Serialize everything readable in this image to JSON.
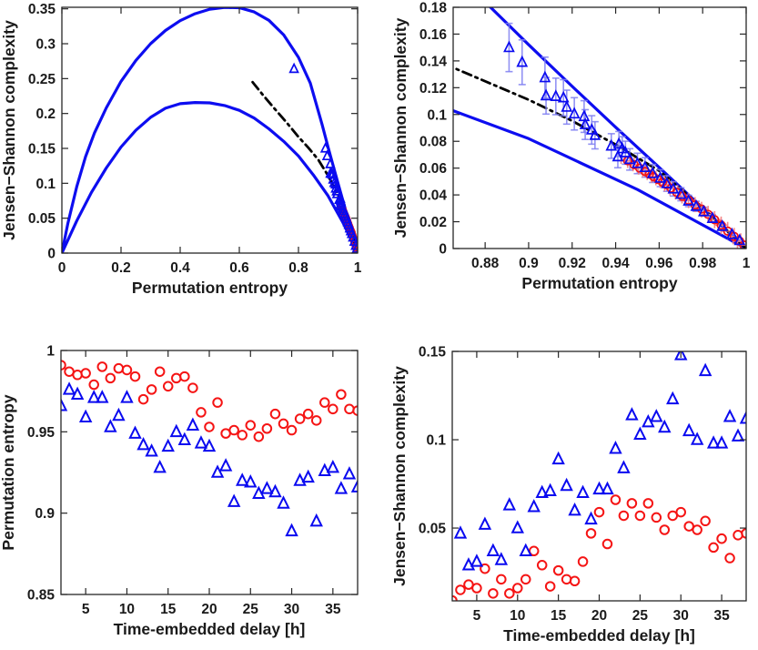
{
  "figure": {
    "background": "#ffffff",
    "axis_color": "#262626",
    "text_color": "#1a1a1a",
    "colors": {
      "blue": "#0a0af0",
      "red": "#f51414",
      "bound_line": "#0d0df0",
      "fit_line": "#000000",
      "blue_errorbar": "#7f7ff2",
      "red_errorbar": "#f47d7d"
    }
  },
  "chart_data": {
    "description": "2x2 subplot figure: complexity-entropy causality plane (full and zoomed) and permutation entropy / Jensen-Shannon complexity versus time-embedded delay",
    "ch_plane": {
      "bounds_upper": [
        [
          0,
          0
        ],
        [
          0.02,
          0.042
        ],
        [
          0.05,
          0.095
        ],
        [
          0.08,
          0.138
        ],
        [
          0.11,
          0.172
        ],
        [
          0.15,
          0.208
        ],
        [
          0.2,
          0.246
        ],
        [
          0.25,
          0.276
        ],
        [
          0.3,
          0.3
        ],
        [
          0.35,
          0.319
        ],
        [
          0.4,
          0.333
        ],
        [
          0.45,
          0.343
        ],
        [
          0.5,
          0.3495
        ],
        [
          0.55,
          0.352
        ],
        [
          0.6,
          0.3515
        ],
        [
          0.65,
          0.3455
        ],
        [
          0.7,
          0.3335
        ],
        [
          0.75,
          0.3125
        ],
        [
          0.8,
          0.2805
        ],
        [
          0.84,
          0.2435
        ],
        [
          0.88,
          0.184
        ],
        [
          0.9,
          0.152
        ],
        [
          0.92,
          0.121
        ],
        [
          0.94,
          0.0905
        ],
        [
          0.96,
          0.0605
        ],
        [
          0.98,
          0.0302
        ],
        [
          1,
          0
        ]
      ],
      "bounds_lower": [
        [
          0,
          0
        ],
        [
          0.05,
          0.046
        ],
        [
          0.1,
          0.087
        ],
        [
          0.15,
          0.122
        ],
        [
          0.2,
          0.152
        ],
        [
          0.25,
          0.176
        ],
        [
          0.3,
          0.1945
        ],
        [
          0.35,
          0.2075
        ],
        [
          0.4,
          0.214
        ],
        [
          0.45,
          0.2158
        ],
        [
          0.5,
          0.2152
        ],
        [
          0.55,
          0.2115
        ],
        [
          0.6,
          0.2045
        ],
        [
          0.65,
          0.1935
        ],
        [
          0.7,
          0.178
        ],
        [
          0.75,
          0.16
        ],
        [
          0.8,
          0.139
        ],
        [
          0.85,
          0.112
        ],
        [
          0.9,
          0.082
        ],
        [
          0.95,
          0.044
        ],
        [
          1,
          0
        ]
      ],
      "fit_dashdot": [
        [
          0.645,
          0.245
        ],
        [
          0.68,
          0.2265
        ],
        [
          0.72,
          0.2065
        ],
        [
          0.76,
          0.187
        ],
        [
          0.8,
          0.1665
        ],
        [
          0.8333,
          0.151
        ],
        [
          0.8667,
          0.134
        ],
        [
          0.9,
          0.111
        ],
        [
          0.92,
          0.0952
        ],
        [
          0.94,
          0.0775
        ],
        [
          0.96,
          0.058
        ],
        [
          0.98,
          0.0305
        ],
        [
          1,
          0
        ]
      ],
      "blue_triangles": {
        "label": "blue triangles with error bars",
        "yerr_factor": 0.12,
        "points": [
          [
            0.785,
            0.264
          ],
          [
            0.891,
            0.15
          ],
          [
            0.897,
            0.139
          ],
          [
            0.9075,
            0.1275
          ],
          [
            0.908,
            0.114
          ],
          [
            0.9125,
            0.1135
          ],
          [
            0.916,
            0.1125
          ],
          [
            0.9175,
            0.1055
          ],
          [
            0.921,
            0.1005
          ],
          [
            0.9255,
            0.0985
          ],
          [
            0.926,
            0.0925
          ],
          [
            0.929,
            0.0885
          ],
          [
            0.9305,
            0.0845
          ],
          [
            0.938,
            0.0765
          ],
          [
            0.9415,
            0.078
          ],
          [
            0.941,
            0.0685
          ],
          [
            0.943,
            0.0745
          ],
          [
            0.9445,
            0.0715
          ],
          [
            0.9465,
            0.0665
          ],
          [
            0.95,
            0.0635
          ],
          [
            0.9535,
            0.0605
          ],
          [
            0.957,
            0.056
          ],
          [
            0.9605,
            0.0525
          ],
          [
            0.9635,
            0.0485
          ],
          [
            0.9665,
            0.0445
          ],
          [
            0.97,
            0.0405
          ],
          [
            0.9735,
            0.0355
          ],
          [
            0.977,
            0.0315
          ],
          [
            0.9805,
            0.0275
          ],
          [
            0.9845,
            0.0225
          ],
          [
            0.989,
            0.0165
          ],
          [
            0.9935,
            0.0105
          ],
          [
            0.997,
            0.006
          ]
        ]
      },
      "red_circles": {
        "label": "red circles with error bars",
        "xerr": 0.003,
        "points": [
          [
            0.9455,
            0.0655
          ],
          [
            0.9485,
            0.0625
          ],
          [
            0.951,
            0.06
          ],
          [
            0.9535,
            0.0575
          ],
          [
            0.9555,
            0.0555
          ],
          [
            0.9575,
            0.0535
          ],
          [
            0.9595,
            0.0515
          ],
          [
            0.9615,
            0.0495
          ],
          [
            0.9635,
            0.0475
          ],
          [
            0.9655,
            0.045
          ],
          [
            0.968,
            0.042
          ],
          [
            0.9705,
            0.039
          ],
          [
            0.9735,
            0.036
          ],
          [
            0.9765,
            0.0325
          ],
          [
            0.9795,
            0.0295
          ],
          [
            0.9825,
            0.0255
          ],
          [
            0.9855,
            0.0215
          ],
          [
            0.9885,
            0.0175
          ],
          [
            0.9915,
            0.013
          ],
          [
            0.9945,
            0.009
          ],
          [
            0.997,
            0.0055
          ],
          [
            0.999,
            0.0025
          ]
        ]
      }
    },
    "panels": [
      {
        "id": "top-left",
        "type": "scatter",
        "xlabel": "Permutation entropy",
        "ylabel": "Jensen−Shannon complexity",
        "xlim": [
          0,
          1
        ],
        "ylim": [
          0,
          0.3522
        ],
        "xticks": [
          0,
          0.2,
          0.4,
          0.6,
          0.8,
          1
        ],
        "yticks": [
          0,
          0.05,
          0.1,
          0.15,
          0.2,
          0.25,
          0.3,
          0.35
        ],
        "content": "ch_plane",
        "errorbars": false,
        "marker_px": 4.4
      },
      {
        "id": "top-right",
        "type": "scatter",
        "xlabel": "Permutation entropy",
        "ylabel": "Jensen−Shannon complexity",
        "xlim": [
          0.8653,
          1
        ],
        "ylim": [
          0,
          0.18
        ],
        "xticks": [
          0.88,
          0.9,
          0.92,
          0.94,
          0.96,
          0.98,
          1
        ],
        "yticks": [
          0,
          0.02,
          0.04,
          0.06,
          0.08,
          0.1,
          0.12,
          0.14,
          0.16,
          0.18
        ],
        "content": "ch_plane",
        "errorbars": true,
        "marker_px": 5
      },
      {
        "id": "bottom-left",
        "type": "scatter",
        "xlabel": "Time-embedded delay [h]",
        "ylabel": "Permutation entropy",
        "xlim": [
          2,
          38
        ],
        "ylim": [
          0.85,
          1
        ],
        "xticks": [
          5,
          10,
          15,
          20,
          25,
          30,
          35
        ],
        "yticks": [
          0.85,
          0.9,
          0.95,
          1
        ],
        "marker_px": 5.6,
        "series": [
          {
            "name": "red-circles",
            "marker": "circle",
            "color": "red",
            "x": [
              2,
              3,
              4,
              5,
              6,
              7,
              8,
              9,
              10,
              11,
              12,
              13,
              14,
              15,
              16,
              17,
              18,
              19,
              20,
              21,
              22,
              23,
              24,
              25,
              26,
              27,
              28,
              29,
              30,
              31,
              32,
              33,
              34,
              35,
              36,
              37,
              38
            ],
            "y": [
              0.991,
              0.987,
              0.985,
              0.986,
              0.979,
              0.99,
              0.983,
              0.989,
              0.988,
              0.984,
              0.97,
              0.976,
              0.987,
              0.978,
              0.983,
              0.984,
              0.977,
              0.962,
              0.953,
              0.968,
              0.949,
              0.951,
              0.948,
              0.954,
              0.947,
              0.952,
              0.961,
              0.955,
              0.951,
              0.958,
              0.961,
              0.957,
              0.968,
              0.964,
              0.973,
              0.964,
              0.963
            ]
          },
          {
            "name": "blue-triangles",
            "marker": "triangle",
            "color": "blue",
            "x": [
              2,
              3,
              4,
              5,
              6,
              7,
              8,
              9,
              10,
              11,
              12,
              13,
              14,
              15,
              16,
              17,
              18,
              19,
              20,
              21,
              22,
              23,
              24,
              25,
              26,
              27,
              28,
              29,
              30,
              31,
              32,
              33,
              34,
              35,
              36,
              37,
              38
            ],
            "y": [
              0.966,
              0.976,
              0.973,
              0.959,
              0.971,
              0.971,
              0.953,
              0.96,
              0.971,
              0.949,
              0.942,
              0.938,
              0.928,
              0.941,
              0.95,
              0.945,
              0.954,
              0.943,
              0.941,
              0.925,
              0.929,
              0.907,
              0.92,
              0.919,
              0.912,
              0.915,
              0.913,
              0.906,
              0.889,
              0.92,
              0.922,
              0.895,
              0.926,
              0.928,
              0.915,
              0.924,
              0.916
            ]
          }
        ]
      },
      {
        "id": "bottom-right",
        "type": "scatter",
        "xlabel": "Time-embedded delay [h]",
        "ylabel": "Jensen−Shannon complexity",
        "xlim": [
          2,
          38
        ],
        "ylim": [
          0.0088,
          0.15
        ],
        "xticks": [
          5,
          10,
          15,
          20,
          25,
          30,
          35
        ],
        "yticks": [
          0.05,
          0.1,
          0.15
        ],
        "marker_px": 5.6,
        "series": [
          {
            "name": "red-circles",
            "marker": "circle",
            "color": "red",
            "x": [
              2,
              3,
              4,
              5,
              6,
              7,
              8,
              9,
              10,
              11,
              12,
              13,
              14,
              15,
              16,
              17,
              18,
              19,
              20,
              21,
              22,
              23,
              24,
              25,
              26,
              27,
              28,
              29,
              30,
              31,
              32,
              33,
              34,
              35,
              36,
              37,
              38
            ],
            "y": [
              0.009,
              0.015,
              0.018,
              0.016,
              0.027,
              0.013,
              0.021,
              0.013,
              0.016,
              0.021,
              0.037,
              0.029,
              0.017,
              0.026,
              0.021,
              0.02,
              0.031,
              0.047,
              0.059,
              0.041,
              0.066,
              0.057,
              0.064,
              0.057,
              0.064,
              0.056,
              0.049,
              0.057,
              0.059,
              0.051,
              0.049,
              0.054,
              0.039,
              0.044,
              0.033,
              0.046,
              0.047
            ]
          },
          {
            "name": "blue-triangles",
            "marker": "triangle",
            "color": "blue",
            "x": [
              3,
              4,
              5,
              6,
              7,
              8,
              9,
              10,
              11,
              12,
              13,
              14,
              15,
              16,
              17,
              18,
              19,
              20,
              21,
              22,
              23,
              24,
              25,
              26,
              27,
              28,
              29,
              30,
              31,
              32,
              33,
              34,
              35,
              36,
              37,
              38
            ],
            "y": [
              0.047,
              0.029,
              0.031,
              0.052,
              0.037,
              0.032,
              0.063,
              0.05,
              0.037,
              0.062,
              0.07,
              0.071,
              0.089,
              0.074,
              0.06,
              0.07,
              0.055,
              0.072,
              0.072,
              0.095,
              0.084,
              0.114,
              0.103,
              0.11,
              0.113,
              0.107,
              0.123,
              0.148,
              0.105,
              0.1,
              0.139,
              0.098,
              0.098,
              0.113,
              0.102,
              0.112
            ]
          }
        ]
      }
    ]
  }
}
